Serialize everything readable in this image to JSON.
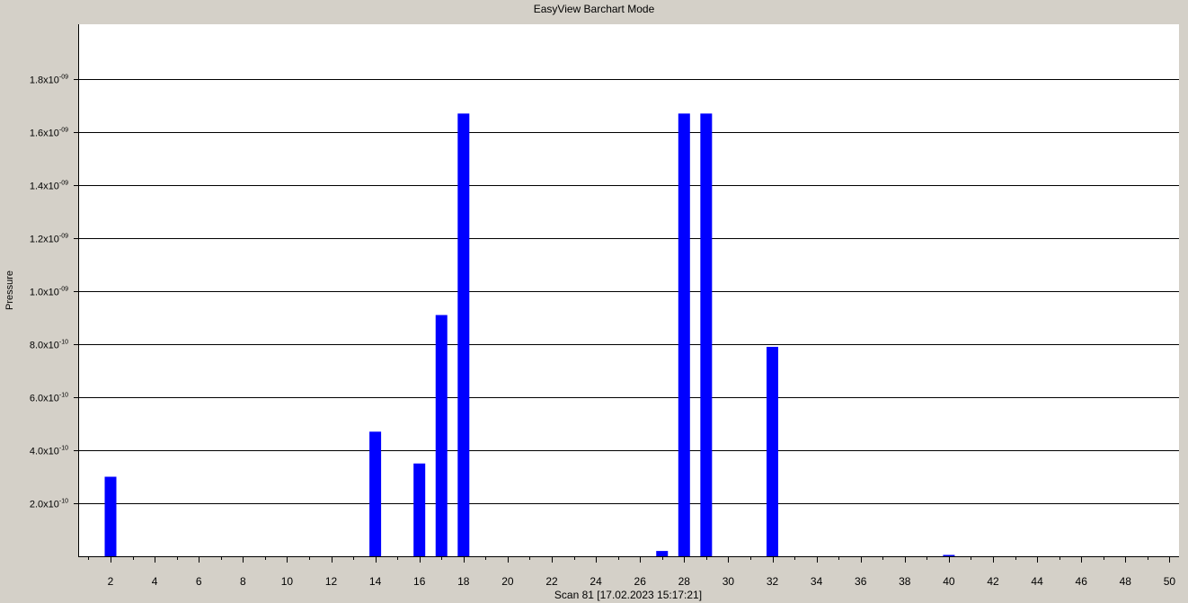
{
  "window": {
    "title": "EasyView Barchart Mode"
  },
  "chart_data": {
    "type": "bar",
    "title": "EasyView Barchart Mode",
    "xlabel": "Scan 81 [17.02.2023 15:17:21]",
    "ylabel": "Pressure",
    "xlim": [
      0.5,
      50.5
    ],
    "ylim": [
      0,
      2e-09
    ],
    "grid": true,
    "yticks": [
      {
        "value": 2e-10,
        "mantissa": "2.0x10",
        "exp": "-10"
      },
      {
        "value": 4e-10,
        "mantissa": "4.0x10",
        "exp": "-10"
      },
      {
        "value": 6e-10,
        "mantissa": "6.0x10",
        "exp": "-10"
      },
      {
        "value": 8e-10,
        "mantissa": "8.0x10",
        "exp": "-10"
      },
      {
        "value": 1e-09,
        "mantissa": "1.0x10",
        "exp": "-09"
      },
      {
        "value": 1.2e-09,
        "mantissa": "1.2x10",
        "exp": "-09"
      },
      {
        "value": 1.4e-09,
        "mantissa": "1.4x10",
        "exp": "-09"
      },
      {
        "value": 1.6e-09,
        "mantissa": "1.6x10",
        "exp": "-09"
      },
      {
        "value": 1.8e-09,
        "mantissa": "1.8x10",
        "exp": "-09"
      }
    ],
    "xticks": [
      "2",
      "4",
      "6",
      "8",
      "10",
      "12",
      "14",
      "16",
      "18",
      "20",
      "22",
      "24",
      "26",
      "28",
      "30",
      "32",
      "34",
      "36",
      "38",
      "40",
      "42",
      "44",
      "46",
      "48",
      "50"
    ],
    "bar_color": "#0000ff",
    "bars": [
      {
        "x": 2,
        "value": 3e-10
      },
      {
        "x": 14,
        "value": 4.7e-10
      },
      {
        "x": 16,
        "value": 3.5e-10
      },
      {
        "x": 17,
        "value": 9.1e-10
      },
      {
        "x": 18,
        "value": 1.67e-09
      },
      {
        "x": 27,
        "value": 2e-11
      },
      {
        "x": 28,
        "value": 1.67e-09
      },
      {
        "x": 29,
        "value": 1.67e-09
      },
      {
        "x": 32,
        "value": 7.9e-10
      },
      {
        "x": 40,
        "value": 5e-12
      }
    ]
  }
}
